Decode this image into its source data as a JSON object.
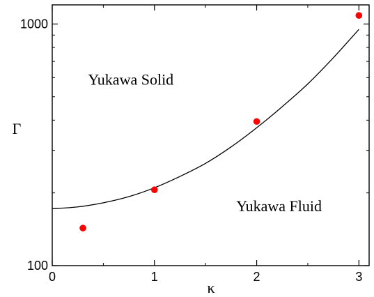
{
  "chart_data": {
    "type": "scatter",
    "xlabel": "κ",
    "ylabel": "Γ",
    "xlim": [
      0,
      3.1
    ],
    "ylim": [
      100,
      1200
    ],
    "y_scale": "log",
    "grid": false,
    "x_ticks": [
      {
        "value": 0,
        "label": "0"
      },
      {
        "value": 1,
        "label": "1"
      },
      {
        "value": 2,
        "label": "2"
      },
      {
        "value": 3,
        "label": "3"
      }
    ],
    "y_ticks": [
      {
        "value": 100,
        "label": "100"
      },
      {
        "value": 1000,
        "label": "1000"
      }
    ],
    "series": [
      {
        "kind": "line",
        "color": "#000000",
        "x": [
          0,
          0.25,
          0.5,
          0.75,
          1.0,
          1.25,
          1.5,
          1.75,
          2.0,
          2.25,
          2.5,
          2.75,
          3.0
        ],
        "y": [
          172,
          175,
          182,
          193,
          210,
          234,
          265,
          310,
          372,
          455,
          565,
          725,
          950
        ]
      },
      {
        "kind": "points",
        "color": "#ff0000",
        "x": [
          0.3,
          1.0,
          2.0,
          3.0
        ],
        "y": [
          143,
          206,
          395,
          1085
        ]
      }
    ],
    "annotations": [
      {
        "text": "Yukawa Solid",
        "x": 0.35,
        "y": 560
      },
      {
        "text": "Yukawa Fluid",
        "x": 1.8,
        "y": 168
      }
    ]
  }
}
